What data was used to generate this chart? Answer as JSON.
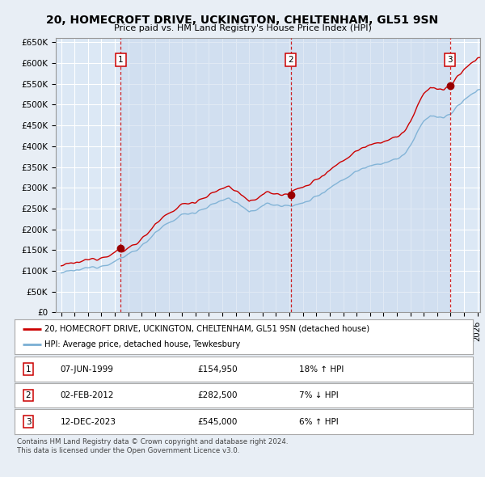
{
  "title": "20, HOMECROFT DRIVE, UCKINGTON, CHELTENHAM, GL51 9SN",
  "subtitle": "Price paid vs. HM Land Registry's House Price Index (HPI)",
  "bg_color": "#e8eef5",
  "plot_bg": "#dce8f5",
  "grid_color": "#ffffff",
  "red_line_color": "#cc0000",
  "blue_line_color": "#7aafd4",
  "sale_marker_color": "#990000",
  "dashed_line_color": "#cc0000",
  "fill_between_color": "#c8d8ec",
  "hatch_color": "#c0c8d0",
  "transactions": [
    {
      "num": 1,
      "date_x": 1999.44,
      "price": 154950,
      "label": "07-JUN-1999",
      "price_str": "£154,950",
      "pct": "18% ↑ HPI"
    },
    {
      "num": 2,
      "date_x": 2012.09,
      "price": 282500,
      "label": "02-FEB-2012",
      "price_str": "£282,500",
      "pct": "7% ↓ HPI"
    },
    {
      "num": 3,
      "date_x": 2023.95,
      "price": 545000,
      "label": "12-DEC-2023",
      "price_str": "£545,000",
      "pct": "6% ↑ HPI"
    }
  ],
  "legend_label_red": "20, HOMECROFT DRIVE, UCKINGTON, CHELTENHAM, GL51 9SN (detached house)",
  "legend_label_blue": "HPI: Average price, detached house, Tewkesbury",
  "footer1": "Contains HM Land Registry data © Crown copyright and database right 2024.",
  "footer2": "This data is licensed under the Open Government Licence v3.0.",
  "ylim": [
    0,
    660000
  ],
  "xlim_start": 1994.6,
  "xlim_end": 2026.2,
  "yticks": [
    0,
    50000,
    100000,
    150000,
    200000,
    250000,
    300000,
    350000,
    400000,
    450000,
    500000,
    550000,
    600000,
    650000
  ],
  "ytick_labels": [
    "£0",
    "£50K",
    "£100K",
    "£150K",
    "£200K",
    "£250K",
    "£300K",
    "£350K",
    "£400K",
    "£450K",
    "£500K",
    "£550K",
    "£600K",
    "£650K"
  ]
}
